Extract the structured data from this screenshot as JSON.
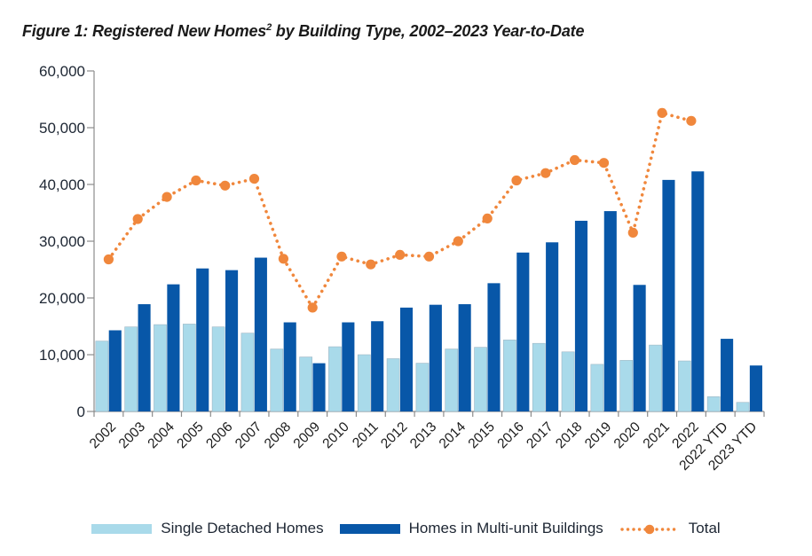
{
  "title": {
    "prefix": "Figure 1: Registered New Homes",
    "superscript": "2",
    "suffix": " by Building Type, 2002–2023 Year-to-Date"
  },
  "legend": {
    "items": [
      {
        "label": "Single Detached Homes",
        "swatch": "light-blue-rect"
      },
      {
        "label": "Homes in Multi-unit Buildings",
        "swatch": "dark-blue-rect"
      },
      {
        "label": "Total",
        "swatch": "orange-dotted-line"
      }
    ]
  },
  "colors": {
    "single_detached": "#A9DAEA",
    "multi_unit": "#0857A8",
    "total_line": "#F0873C",
    "axis": "#8C8C8C",
    "ytick_label": "#1d2633",
    "xtick_label": "#1a1a1a"
  },
  "chart_data": {
    "type": "bar",
    "subtype": "grouped-bars-with-dotted-total-line",
    "title": "Figure 1: Registered New Homes² by Building Type, 2002–2023 Year-to-Date",
    "xlabel": "",
    "ylabel": "",
    "ylim": [
      0,
      60000
    ],
    "yticks": [
      0,
      10000,
      20000,
      30000,
      40000,
      50000,
      60000
    ],
    "ytick_labels": [
      "0",
      "10,000",
      "20,000",
      "30,000",
      "40,000",
      "50,000",
      "60,000"
    ],
    "grid": false,
    "legend_position": "bottom",
    "categories": [
      "2002",
      "2003",
      "2004",
      "2005",
      "2006",
      "2007",
      "2008",
      "2009",
      "2010",
      "2011",
      "2012",
      "2013",
      "2014",
      "2015",
      "2016",
      "2017",
      "2018",
      "2019",
      "2020",
      "2021",
      "2022",
      "2022 YTD",
      "2023 YTD"
    ],
    "series": [
      {
        "name": "Single Detached Homes",
        "kind": "bar",
        "color": "#A9DAEA",
        "values": [
          12400,
          14900,
          15300,
          15400,
          14900,
          13800,
          11000,
          9600,
          11400,
          10000,
          9300,
          8500,
          11000,
          11300,
          12600,
          12000,
          10500,
          8300,
          9000,
          11700,
          8900,
          2600,
          1600
        ]
      },
      {
        "name": "Homes in Multi-unit Buildings",
        "kind": "bar",
        "color": "#0857A8",
        "values": [
          14300,
          18900,
          22400,
          25200,
          24900,
          27100,
          15700,
          8500,
          15700,
          15900,
          18300,
          18800,
          18900,
          22600,
          28000,
          29800,
          33600,
          35300,
          22300,
          40800,
          42300,
          12800,
          8100
        ]
      },
      {
        "name": "Total",
        "kind": "dotted-line-with-markers",
        "color": "#F0873C",
        "values": [
          26800,
          33900,
          37800,
          40700,
          39800,
          41000,
          26900,
          18300,
          27300,
          25900,
          27600,
          27300,
          30000,
          34000,
          40700,
          42000,
          44300,
          43800,
          31500,
          52600,
          51200,
          null,
          null
        ]
      }
    ]
  }
}
